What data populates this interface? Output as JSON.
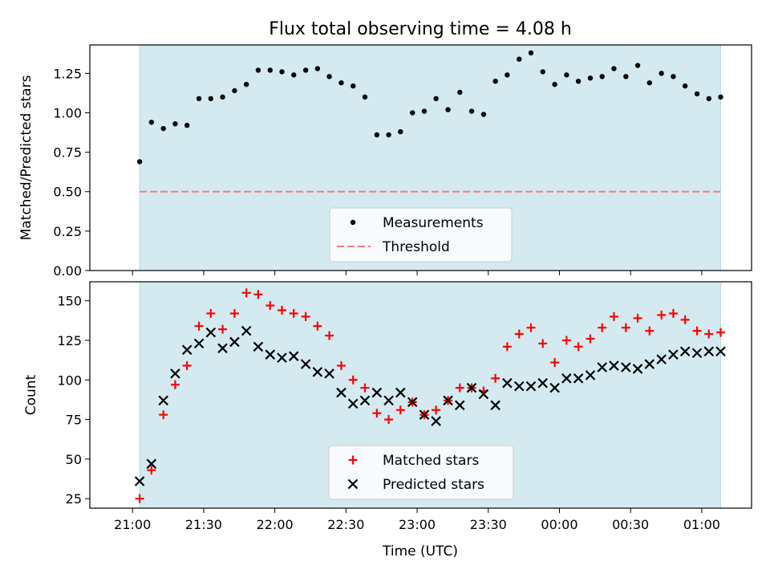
{
  "figure": {
    "title": "Flux total observing time = 4.08 h",
    "xlabel": "Time (UTC)"
  },
  "colors": {
    "band": "#d4eaf0",
    "band_edge": "#b7dbe4",
    "threshold": "#f07c80",
    "matched": "#ff0000",
    "predicted": "#000000",
    "measurement": "#000000"
  },
  "chart_data": [
    {
      "type": "scatter",
      "ylabel": "Matched/Predicted stars",
      "xlim": [
        -0.3,
        4.35
      ],
      "ylim": [
        0,
        1.43
      ],
      "band": [
        0.05,
        4.133
      ],
      "x_ticks": [
        0,
        0.5,
        1,
        1.5,
        2,
        2.5,
        3,
        3.5,
        4
      ],
      "y_ticks": [
        "0.00",
        "0.25",
        "0.50",
        "0.75",
        "1.00",
        "1.25"
      ],
      "threshold": {
        "name": "Threshold",
        "value": 0.5
      },
      "legend_position": "bottom-center",
      "series": [
        {
          "name": "Measurements",
          "x": [
            0.05,
            0.133,
            0.217,
            0.3,
            0.383,
            0.467,
            0.55,
            0.633,
            0.717,
            0.8,
            0.883,
            0.967,
            1.05,
            1.133,
            1.217,
            1.3,
            1.383,
            1.467,
            1.55,
            1.633,
            1.717,
            1.8,
            1.883,
            1.967,
            2.05,
            2.133,
            2.217,
            2.3,
            2.383,
            2.467,
            2.55,
            2.633,
            2.717,
            2.8,
            2.883,
            2.967,
            3.05,
            3.133,
            3.217,
            3.3,
            3.383,
            3.467,
            3.55,
            3.633,
            3.717,
            3.8,
            3.883,
            3.967,
            4.05,
            4.133
          ],
          "values": [
            0.69,
            0.94,
            0.9,
            0.93,
            0.92,
            1.09,
            1.09,
            1.1,
            1.14,
            1.18,
            1.27,
            1.27,
            1.26,
            1.24,
            1.27,
            1.28,
            1.23,
            1.19,
            1.17,
            1.1,
            0.86,
            0.86,
            0.88,
            1.0,
            1.01,
            1.09,
            1.02,
            1.13,
            1.01,
            0.99,
            1.2,
            1.24,
            1.34,
            1.38,
            1.26,
            1.18,
            1.24,
            1.2,
            1.22,
            1.23,
            1.28,
            1.23,
            1.3,
            1.19,
            1.25,
            1.23,
            1.17,
            1.12,
            1.09,
            1.1
          ]
        }
      ]
    },
    {
      "type": "scatter",
      "ylabel": "Count",
      "xlim": [
        -0.3,
        4.35
      ],
      "ylim": [
        19,
        162
      ],
      "band": [
        0.05,
        4.133
      ],
      "x_ticks": [
        0,
        0.5,
        1,
        1.5,
        2,
        2.5,
        3,
        3.5,
        4
      ],
      "x_tick_labels": [
        "21:00",
        "21:30",
        "22:00",
        "22:30",
        "23:00",
        "23:30",
        "00:00",
        "00:30",
        "01:00"
      ],
      "y_ticks": [
        "25",
        "50",
        "75",
        "100",
        "125",
        "150"
      ],
      "legend_position": "bottom-center",
      "series": [
        {
          "name": "Matched stars",
          "x": [
            0.05,
            0.133,
            0.217,
            0.3,
            0.383,
            0.467,
            0.55,
            0.633,
            0.717,
            0.8,
            0.883,
            0.967,
            1.05,
            1.133,
            1.217,
            1.3,
            1.383,
            1.467,
            1.55,
            1.633,
            1.717,
            1.8,
            1.883,
            1.967,
            2.05,
            2.133,
            2.217,
            2.3,
            2.383,
            2.467,
            2.55,
            2.633,
            2.717,
            2.8,
            2.883,
            2.967,
            3.05,
            3.133,
            3.217,
            3.3,
            3.383,
            3.467,
            3.55,
            3.633,
            3.717,
            3.8,
            3.883,
            3.967,
            4.05,
            4.133
          ],
          "values": [
            25,
            43,
            78,
            97,
            109,
            134,
            142,
            132,
            142,
            155,
            154,
            147,
            144,
            142,
            140,
            134,
            128,
            109,
            100,
            95,
            79,
            75,
            81,
            86,
            78,
            81,
            87,
            95,
            95,
            93,
            101,
            121,
            129,
            133,
            123,
            111,
            125,
            121,
            126,
            133,
            140,
            133,
            139,
            131,
            141,
            142,
            138,
            131,
            129,
            130
          ]
        },
        {
          "name": "Predicted stars",
          "x": [
            0.05,
            0.133,
            0.217,
            0.3,
            0.383,
            0.467,
            0.55,
            0.633,
            0.717,
            0.8,
            0.883,
            0.967,
            1.05,
            1.133,
            1.217,
            1.3,
            1.383,
            1.467,
            1.55,
            1.633,
            1.717,
            1.8,
            1.883,
            1.967,
            2.05,
            2.133,
            2.217,
            2.3,
            2.383,
            2.467,
            2.55,
            2.633,
            2.717,
            2.8,
            2.883,
            2.967,
            3.05,
            3.133,
            3.217,
            3.3,
            3.383,
            3.467,
            3.55,
            3.633,
            3.717,
            3.8,
            3.883,
            3.967,
            4.05,
            4.133
          ],
          "values": [
            36,
            47,
            87,
            104,
            119,
            123,
            130,
            120,
            124,
            131,
            121,
            116,
            114,
            115,
            110,
            105,
            104,
            92,
            85,
            87,
            92,
            87,
            92,
            86,
            78,
            74,
            87,
            84,
            95,
            91,
            84,
            98,
            96,
            96,
            98,
            95,
            101,
            101,
            103,
            108,
            109,
            108,
            107,
            110,
            113,
            116,
            118,
            117,
            118,
            118
          ]
        }
      ]
    }
  ]
}
